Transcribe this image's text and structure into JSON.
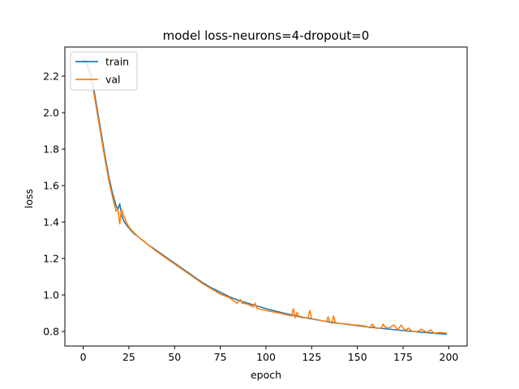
{
  "chart_data": {
    "type": "line",
    "title": "model loss-neurons=4-dropout=0",
    "xlabel": "epoch",
    "ylabel": "loss",
    "xlim": [
      -10,
      210
    ],
    "ylim": [
      0.72,
      2.36
    ],
    "xticks": [
      0,
      25,
      50,
      75,
      100,
      125,
      150,
      175,
      200
    ],
    "yticks": [
      0.8,
      1.0,
      1.2,
      1.4,
      1.6,
      1.8,
      2.0,
      2.2
    ],
    "xtick_labels": [
      "0",
      "25",
      "50",
      "75",
      "100",
      "125",
      "150",
      "175",
      "200"
    ],
    "ytick_labels": [
      "0.8",
      "1.0",
      "1.2",
      "1.4",
      "1.6",
      "1.8",
      "2.0",
      "2.2"
    ],
    "grid": false,
    "legend_position": "top-left",
    "series": [
      {
        "name": "train",
        "color": "#1f77b4",
        "x": [
          0,
          2,
          4,
          6,
          8,
          10,
          12,
          14,
          16,
          18,
          19,
          20,
          21,
          22,
          24,
          26,
          28,
          30,
          35,
          40,
          45,
          50,
          55,
          60,
          65,
          70,
          75,
          80,
          85,
          90,
          95,
          100,
          105,
          110,
          115,
          120,
          125,
          130,
          135,
          140,
          145,
          150,
          155,
          160,
          165,
          170,
          175,
          180,
          185,
          190,
          195,
          199
        ],
        "values": [
          2.3,
          2.27,
          2.22,
          2.12,
          2.0,
          1.88,
          1.76,
          1.65,
          1.56,
          1.49,
          1.47,
          1.5,
          1.44,
          1.41,
          1.38,
          1.355,
          1.335,
          1.32,
          1.28,
          1.245,
          1.21,
          1.175,
          1.14,
          1.105,
          1.07,
          1.04,
          1.015,
          0.99,
          0.97,
          0.955,
          0.94,
          0.925,
          0.912,
          0.9,
          0.888,
          0.878,
          0.869,
          0.86,
          0.852,
          0.845,
          0.838,
          0.832,
          0.826,
          0.82,
          0.815,
          0.81,
          0.805,
          0.8,
          0.796,
          0.792,
          0.788,
          0.785
        ]
      },
      {
        "name": "val",
        "color": "#ff7f0e",
        "x": [
          0,
          2,
          4,
          6,
          8,
          10,
          12,
          14,
          16,
          17,
          18,
          19,
          20,
          21,
          22,
          24,
          26,
          28,
          30,
          35,
          40,
          45,
          50,
          55,
          60,
          65,
          70,
          75,
          80,
          84,
          85,
          86,
          87,
          90,
          93,
          94,
          95,
          100,
          105,
          110,
          114,
          115,
          116,
          117,
          118,
          120,
          123,
          124,
          125,
          128,
          130,
          133,
          134,
          135,
          136,
          137,
          138,
          140,
          145,
          148,
          150,
          155,
          157,
          158,
          160,
          163,
          164,
          165,
          167,
          170,
          172,
          174,
          176,
          178,
          180,
          183,
          185,
          188,
          190,
          192,
          195,
          199
        ],
        "values": [
          2.29,
          2.26,
          2.2,
          2.1,
          1.98,
          1.86,
          1.74,
          1.63,
          1.54,
          1.5,
          1.46,
          1.47,
          1.39,
          1.47,
          1.44,
          1.39,
          1.36,
          1.34,
          1.32,
          1.28,
          1.24,
          1.205,
          1.17,
          1.135,
          1.1,
          1.065,
          1.035,
          1.005,
          0.985,
          0.955,
          0.965,
          0.975,
          0.955,
          0.95,
          0.935,
          0.955,
          0.925,
          0.915,
          0.905,
          0.895,
          0.885,
          0.925,
          0.875,
          0.905,
          0.88,
          0.875,
          0.875,
          0.915,
          0.87,
          0.865,
          0.86,
          0.855,
          0.88,
          0.85,
          0.845,
          0.885,
          0.845,
          0.845,
          0.84,
          0.835,
          0.835,
          0.828,
          0.82,
          0.84,
          0.818,
          0.818,
          0.84,
          0.825,
          0.818,
          0.835,
          0.81,
          0.835,
          0.805,
          0.818,
          0.8,
          0.8,
          0.812,
          0.795,
          0.808,
          0.79,
          0.795,
          0.79
        ]
      }
    ]
  }
}
